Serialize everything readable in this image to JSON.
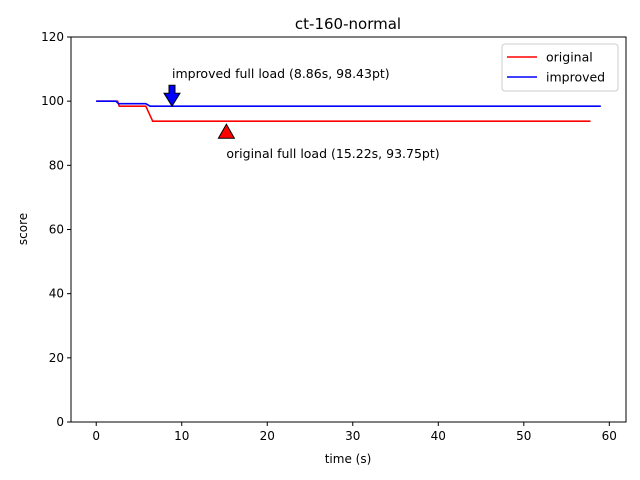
{
  "chart_data": {
    "type": "line",
    "title": "ct-160-normal",
    "xlabel": "time (s)",
    "ylabel": "score",
    "xlim": [
      -2.95,
      61.95
    ],
    "ylim": [
      0,
      120
    ],
    "xticks": [
      0,
      10,
      20,
      30,
      40,
      50,
      60
    ],
    "yticks": [
      0,
      20,
      40,
      60,
      80,
      100,
      120
    ],
    "grid": false,
    "legend_position": "top-right",
    "series": [
      {
        "name": "original",
        "color": "#ff0000",
        "x": [
          0,
          2.5,
          2.7,
          5.8,
          6.6,
          15.22,
          57.8
        ],
        "y": [
          100,
          100,
          98.43,
          98.43,
          93.75,
          93.75,
          93.75
        ]
      },
      {
        "name": "improved",
        "color": "#0000ff",
        "x": [
          0,
          2.3,
          2.6,
          5.8,
          6.3,
          8.86,
          59.0
        ],
        "y": [
          100,
          100,
          99.2,
          99.2,
          98.43,
          98.43,
          98.43
        ]
      }
    ],
    "annotations": [
      {
        "text": "improved full load (8.86s, 98.43pt)",
        "x": 8.86,
        "y": 98.43,
        "marker": "down-arrow",
        "color": "#0000ff"
      },
      {
        "text": "original full load (15.22s, 93.75pt)",
        "x": 15.22,
        "y": 93.75,
        "marker": "up-arrow",
        "color": "#ff0000"
      }
    ]
  }
}
